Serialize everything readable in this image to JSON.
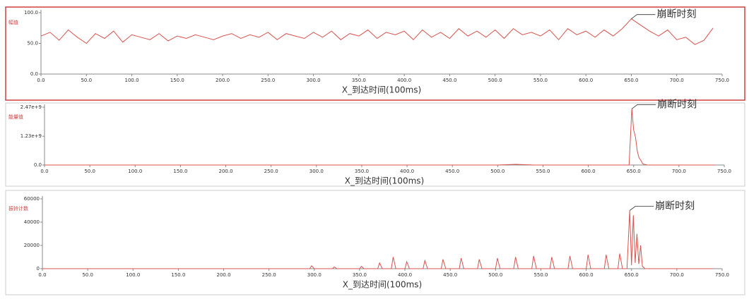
{
  "chart_data": [
    {
      "type": "line",
      "ylabel": "幅值",
      "xlabel": "X_到达时间(100ms)",
      "annotation": "崩断时刻",
      "color": "#d9534f",
      "x": [
        0,
        10,
        20,
        30,
        40,
        50,
        60,
        70,
        80,
        90,
        100,
        110,
        120,
        130,
        140,
        150,
        160,
        170,
        180,
        190,
        200,
        210,
        220,
        230,
        240,
        250,
        260,
        270,
        280,
        290,
        300,
        310,
        320,
        330,
        340,
        350,
        360,
        370,
        380,
        390,
        400,
        410,
        420,
        430,
        440,
        450,
        460,
        470,
        480,
        490,
        500,
        510,
        520,
        530,
        540,
        550,
        560,
        570,
        580,
        590,
        600,
        610,
        620,
        630,
        640,
        650,
        660,
        670,
        680,
        690,
        700,
        710,
        720,
        730,
        740
      ],
      "values": [
        62,
        68,
        55,
        72,
        60,
        50,
        66,
        58,
        70,
        52,
        64,
        60,
        56,
        66,
        54,
        62,
        58,
        64,
        60,
        56,
        62,
        66,
        58,
        64,
        60,
        68,
        56,
        66,
        62,
        58,
        68,
        60,
        70,
        56,
        66,
        62,
        72,
        58,
        68,
        64,
        70,
        56,
        72,
        60,
        68,
        58,
        74,
        62,
        70,
        60,
        72,
        58,
        74,
        64,
        68,
        62,
        72,
        56,
        74,
        64,
        70,
        60,
        72,
        62,
        74,
        90,
        80,
        70,
        62,
        72,
        56,
        60,
        48,
        55,
        75
      ],
      "xlim": [
        0,
        750
      ],
      "xticks": [
        {
          "value": 0,
          "label": "0.0"
        },
        {
          "value": 50,
          "label": "50.0"
        },
        {
          "value": 100,
          "label": "100.0"
        },
        {
          "value": 150,
          "label": "150.0"
        },
        {
          "value": 200,
          "label": "200.0"
        },
        {
          "value": 250,
          "label": "250.0"
        },
        {
          "value": 300,
          "label": "300.0"
        },
        {
          "value": 350,
          "label": "350.0"
        },
        {
          "value": 400,
          "label": "400.0"
        },
        {
          "value": 450,
          "label": "450.0"
        },
        {
          "value": 500,
          "label": "500.0"
        },
        {
          "value": 550,
          "label": "550.0"
        },
        {
          "value": 600,
          "label": "600.0"
        },
        {
          "value": 650,
          "label": "650.0"
        },
        {
          "value": 700,
          "label": "700.0"
        },
        {
          "value": 750,
          "label": "750.0"
        }
      ],
      "ylim": [
        0,
        100
      ],
      "yticks": [
        {
          "value": 0,
          "label": "0.0"
        },
        {
          "value": 50,
          "label": "50.0"
        },
        {
          "value": 100,
          "label": "100.0"
        }
      ]
    },
    {
      "type": "line",
      "ylabel": "能量值",
      "xlabel": "X_到达时间(100ms)",
      "annotation": "崩断时刻",
      "color": "#d9534f",
      "x": [
        0,
        200,
        400,
        500,
        520,
        540,
        600,
        640,
        645,
        648,
        650,
        652,
        654,
        656,
        658,
        660,
        665,
        700,
        740
      ],
      "values": [
        0,
        0,
        0,
        0,
        30000000,
        0,
        0,
        0,
        0,
        2400000000,
        1500000000,
        1200000000,
        600000000,
        300000000,
        200000000,
        50000000,
        0,
        0,
        0
      ],
      "xlim": [
        0,
        750
      ],
      "xticks": [
        {
          "value": 0,
          "label": "0.0"
        },
        {
          "value": 50,
          "label": "50.0"
        },
        {
          "value": 100,
          "label": "100.0"
        },
        {
          "value": 150,
          "label": "150.0"
        },
        {
          "value": 200,
          "label": "200.0"
        },
        {
          "value": 250,
          "label": "250.0"
        },
        {
          "value": 300,
          "label": "300.0"
        },
        {
          "value": 350,
          "label": "350.0"
        },
        {
          "value": 400,
          "label": "400.0"
        },
        {
          "value": 450,
          "label": "450.0"
        },
        {
          "value": 500,
          "label": "500.0"
        },
        {
          "value": 550,
          "label": "550.0"
        },
        {
          "value": 600,
          "label": "600.0"
        },
        {
          "value": 650,
          "label": "650.0"
        },
        {
          "value": 700,
          "label": "700.0"
        },
        {
          "value": 750,
          "label": "750.0"
        }
      ],
      "ylim": [
        0,
        2470000000
      ],
      "yticks": [
        {
          "value": 0,
          "label": "0.0"
        },
        {
          "value": 1230000000,
          "label": "1.23e+9"
        },
        {
          "value": 2470000000,
          "label": "2.47e+9"
        }
      ]
    },
    {
      "type": "line",
      "ylabel": "振铃计数",
      "xlabel": "X_到达时间(100ms)",
      "annotation": "崩断时刻",
      "color": "#d9534f",
      "x": [
        0,
        100,
        200,
        295,
        297,
        300,
        320,
        322,
        325,
        350,
        352,
        355,
        370,
        372,
        375,
        385,
        387,
        390,
        400,
        402,
        405,
        420,
        422,
        425,
        440,
        442,
        445,
        460,
        462,
        465,
        480,
        482,
        485,
        500,
        502,
        505,
        520,
        522,
        525,
        540,
        542,
        545,
        560,
        562,
        565,
        580,
        582,
        585,
        600,
        602,
        605,
        620,
        622,
        625,
        635,
        637,
        640,
        645,
        648,
        650,
        652,
        654,
        656,
        658,
        660,
        662,
        665,
        700,
        740
      ],
      "values": [
        0,
        0,
        0,
        0,
        2500,
        0,
        0,
        1500,
        0,
        0,
        2000,
        0,
        0,
        5000,
        0,
        0,
        10000,
        0,
        0,
        6000,
        0,
        0,
        7000,
        0,
        0,
        8000,
        0,
        0,
        9000,
        0,
        0,
        8000,
        0,
        0,
        9000,
        0,
        0,
        10000,
        0,
        0,
        11000,
        0,
        0,
        10000,
        0,
        0,
        11000,
        0,
        0,
        12000,
        0,
        0,
        12000,
        0,
        0,
        13000,
        0,
        0,
        50000,
        3000,
        46000,
        5000,
        30000,
        4000,
        20000,
        2000,
        0,
        0,
        0
      ],
      "xlim": [
        0,
        750
      ],
      "xticks": [
        {
          "value": 0,
          "label": "0.0"
        },
        {
          "value": 50,
          "label": "50.0"
        },
        {
          "value": 100,
          "label": "100.0"
        },
        {
          "value": 150,
          "label": "150.0"
        },
        {
          "value": 200,
          "label": "200.0"
        },
        {
          "value": 250,
          "label": "250.0"
        },
        {
          "value": 300,
          "label": "300.0"
        },
        {
          "value": 350,
          "label": "350.0"
        },
        {
          "value": 400,
          "label": "400.0"
        },
        {
          "value": 450,
          "label": "450.0"
        },
        {
          "value": 500,
          "label": "500.0"
        },
        {
          "value": 550,
          "label": "550.0"
        },
        {
          "value": 600,
          "label": "600.0"
        },
        {
          "value": 650,
          "label": "650.0"
        },
        {
          "value": 700,
          "label": "700.0"
        },
        {
          "value": 750,
          "label": "750.0"
        }
      ],
      "ylim": [
        0,
        60000
      ],
      "yticks": [
        0,
        20000,
        40000,
        60000
      ]
    }
  ]
}
